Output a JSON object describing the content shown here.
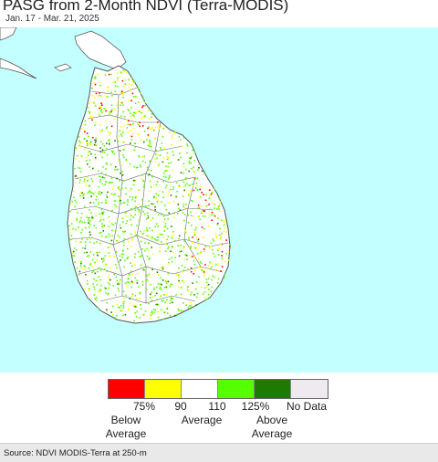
{
  "header": {
    "title": "PASG from 2-Month NDVI (Terra-MODIS)",
    "date_range": "Jan. 17 - Mar. 21, 2025"
  },
  "map": {
    "ocean_color": "#c2fffe",
    "land_color": "#ffffff",
    "boundary_color": "#555555"
  },
  "legend": {
    "swatches": [
      {
        "color": "#ff0000",
        "class": "below-75"
      },
      {
        "color": "#ffff00",
        "class": "75-90"
      },
      {
        "color": "#ffffff",
        "class": "90-110"
      },
      {
        "color": "#55ff00",
        "class": "110-125"
      },
      {
        "color": "#1e7a00",
        "class": "above-125"
      },
      {
        "color": "#eeeaf0",
        "class": "no-data"
      }
    ],
    "ticks": [
      "75%",
      "90",
      "110",
      "125%",
      "No Data"
    ],
    "categories": {
      "below": [
        "Below",
        "Average"
      ],
      "average": "Average",
      "above": [
        "Above",
        "Average"
      ]
    }
  },
  "footer": {
    "source": "Source: NDVI MODIS-Terra at 250-m"
  }
}
